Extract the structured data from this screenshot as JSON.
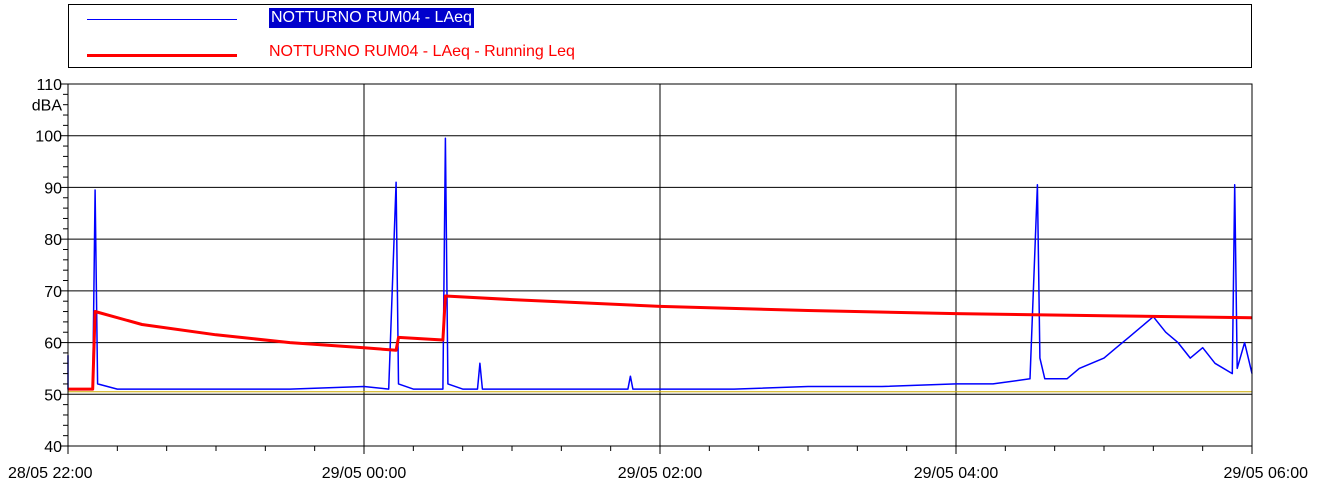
{
  "legend": {
    "items": [
      {
        "label": "NOTTURNO RUM04 - LAeq",
        "color": "#0000ff",
        "label_bg": "#0000cc",
        "label_color": "#ffffff",
        "highlighted": true
      },
      {
        "label": "NOTTURNO RUM04 - LAeq - Running Leq",
        "color": "#ff0000",
        "label_color": "#ff0000",
        "highlighted": false
      }
    ],
    "placement": "top"
  },
  "chart_data": {
    "type": "line",
    "ylabel": "dBA",
    "ylim": [
      40,
      110
    ],
    "yticks": [
      40,
      50,
      60,
      70,
      80,
      90,
      100,
      110
    ],
    "x_range": [
      "28/05 22:00",
      "29/05 06:00"
    ],
    "x_labels": [
      "28/05 22:00",
      "29/05 00:00",
      "29/05 02:00",
      "29/05 04:00",
      "29/05 06:00"
    ],
    "grid": true,
    "baseline_level": 50.5,
    "baseline_color": "#ccaa00",
    "series": [
      {
        "name": "NOTTURNO RUM04 - LAeq",
        "color": "#0000ff",
        "points": [
          [
            "28/05 21:50",
            51
          ],
          [
            "28/05 21:58",
            51
          ],
          [
            "28/05 21:59",
            57.5
          ],
          [
            "28/05 22:00",
            51
          ],
          [
            "28/05 22:10",
            51
          ],
          [
            "28/05 22:11",
            89.5
          ],
          [
            "28/05 22:12",
            52
          ],
          [
            "28/05 22:20",
            51
          ],
          [
            "28/05 23:00",
            51
          ],
          [
            "28/05 23:30",
            51
          ],
          [
            "29/05 00:00",
            51.5
          ],
          [
            "29/05 00:10",
            51
          ],
          [
            "29/05 00:13",
            91
          ],
          [
            "29/05 00:14",
            52
          ],
          [
            "29/05 00:20",
            51
          ],
          [
            "29/05 00:32",
            51
          ],
          [
            "29/05 00:33",
            99.5
          ],
          [
            "29/05 00:34",
            52
          ],
          [
            "29/05 00:40",
            51
          ],
          [
            "29/05 00:46",
            51
          ],
          [
            "29/05 00:47",
            56
          ],
          [
            "29/05 00:48",
            51
          ],
          [
            "29/05 01:30",
            51
          ],
          [
            "29/05 01:47",
            51
          ],
          [
            "29/05 01:48",
            53.5
          ],
          [
            "29/05 01:49",
            51
          ],
          [
            "29/05 02:30",
            51
          ],
          [
            "29/05 03:00",
            51.5
          ],
          [
            "29/05 03:30",
            51.5
          ],
          [
            "29/05 04:00",
            52
          ],
          [
            "29/05 04:15",
            52
          ],
          [
            "29/05 04:30",
            53
          ],
          [
            "29/05 04:33",
            90.5
          ],
          [
            "29/05 04:34",
            57
          ],
          [
            "29/05 04:36",
            53
          ],
          [
            "29/05 04:45",
            53
          ],
          [
            "29/05 04:50",
            55
          ],
          [
            "29/05 05:00",
            57
          ],
          [
            "29/05 05:05",
            59
          ],
          [
            "29/05 05:10",
            61
          ],
          [
            "29/05 05:15",
            63
          ],
          [
            "29/05 05:20",
            65
          ],
          [
            "29/05 05:25",
            62
          ],
          [
            "29/05 05:30",
            60
          ],
          [
            "29/05 05:35",
            57
          ],
          [
            "29/05 05:40",
            59
          ],
          [
            "29/05 05:45",
            56
          ],
          [
            "29/05 05:52",
            54
          ],
          [
            "29/05 05:53",
            90.5
          ],
          [
            "29/05 05:54",
            55
          ],
          [
            "29/05 05:57",
            60
          ],
          [
            "29/05 06:02",
            54
          ]
        ]
      },
      {
        "name": "NOTTURNO RUM04 - LAeq - Running Leq",
        "color": "#ff0000",
        "points": [
          [
            "28/05 21:50",
            51
          ],
          [
            "28/05 22:10",
            51
          ],
          [
            "28/05 22:11",
            66
          ],
          [
            "28/05 22:30",
            63.5
          ],
          [
            "28/05 23:00",
            61.5
          ],
          [
            "28/05 23:30",
            60
          ],
          [
            "29/05 00:00",
            59
          ],
          [
            "29/05 00:13",
            58.5
          ],
          [
            "29/05 00:14",
            61
          ],
          [
            "29/05 00:32",
            60.5
          ],
          [
            "29/05 00:33",
            69
          ],
          [
            "29/05 01:00",
            68.3
          ],
          [
            "29/05 02:00",
            67
          ],
          [
            "29/05 03:00",
            66.2
          ],
          [
            "29/05 04:00",
            65.6
          ],
          [
            "29/05 05:00",
            65.2
          ],
          [
            "29/05 06:02",
            64.8
          ]
        ]
      }
    ]
  }
}
